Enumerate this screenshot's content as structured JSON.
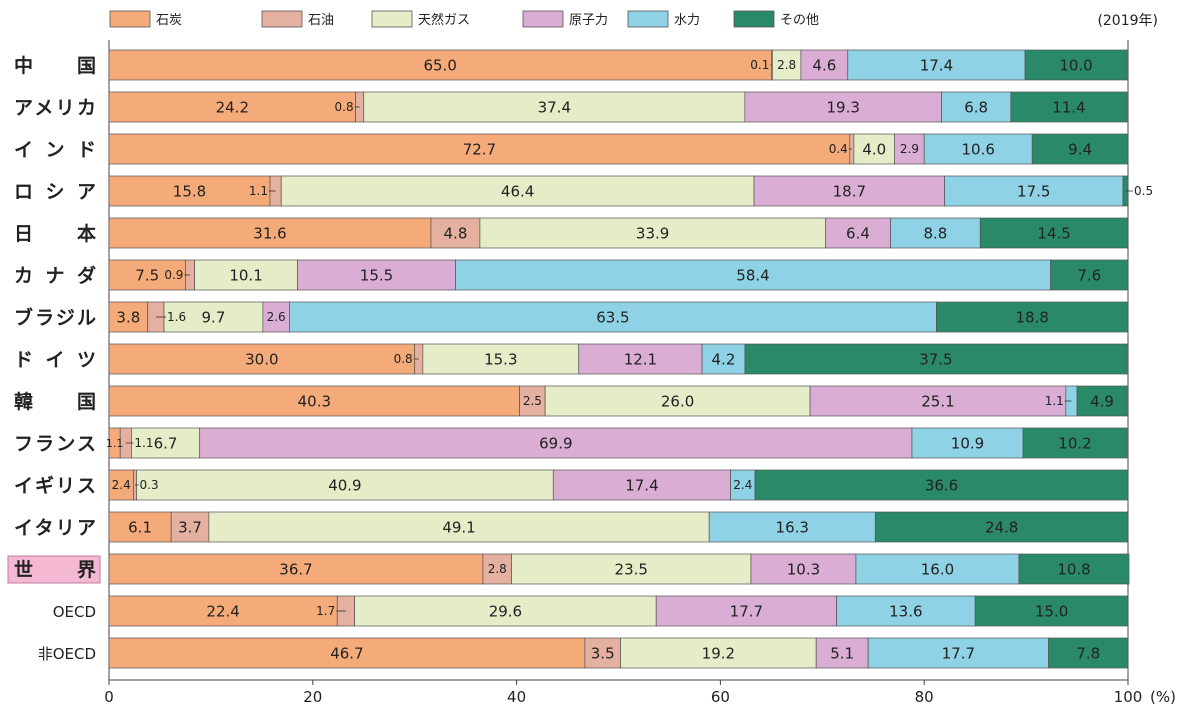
{
  "chart_data": {
    "type": "bar",
    "orientation": "horizontal",
    "stacked": true,
    "note": "(2019年)",
    "xlim": [
      0,
      100
    ],
    "xticks": [
      "0",
      "20",
      "40",
      "60",
      "80",
      "100"
    ],
    "xunit": "(%)",
    "legend_position": "top",
    "series": [
      {
        "name": "石炭",
        "color": "#f5ab79"
      },
      {
        "name": "石油",
        "color": "#e4b0a0"
      },
      {
        "name": "天然ガス",
        "color": "#e5ecc8"
      },
      {
        "name": "原子力",
        "color": "#d9add4"
      },
      {
        "name": "水力",
        "color": "#8fd2e6"
      },
      {
        "name": "その他",
        "color": "#2a8a68"
      }
    ],
    "categories": [
      {
        "label": "中国",
        "style": "country",
        "values": [
          65.0,
          0.1,
          2.8,
          4.6,
          17.4,
          10.0
        ],
        "labels": [
          "65.0",
          "0.1",
          "2.8",
          "4.6",
          "17.4",
          "10.0"
        ]
      },
      {
        "label": "アメリカ",
        "style": "country",
        "values": [
          24.2,
          0.8,
          37.4,
          19.3,
          6.8,
          11.4
        ],
        "labels": [
          "24.2",
          "0.8",
          "37.4",
          "19.3",
          "6.8",
          "11.4"
        ]
      },
      {
        "label": "インド",
        "style": "country",
        "values": [
          72.7,
          0.4,
          4.0,
          2.9,
          10.6,
          9.4
        ],
        "labels": [
          "72.7",
          "0.4",
          "4.0",
          "2.9",
          "10.6",
          "9.4"
        ]
      },
      {
        "label": "ロシア",
        "style": "country",
        "values": [
          15.8,
          1.1,
          46.4,
          18.7,
          17.5,
          0.5
        ],
        "labels": [
          "15.8",
          "1.1",
          "46.4",
          "18.7",
          "17.5",
          "0.5"
        ]
      },
      {
        "label": "日本",
        "style": "country",
        "values": [
          31.6,
          4.8,
          33.9,
          6.4,
          8.8,
          14.5
        ],
        "labels": [
          "31.6",
          "4.8",
          "33.9",
          "6.4",
          "8.8",
          "14.5"
        ]
      },
      {
        "label": "カナダ",
        "style": "country",
        "values": [
          7.5,
          0.9,
          10.1,
          15.5,
          58.4,
          7.6
        ],
        "labels": [
          "7.5",
          "0.9",
          "10.1",
          "15.5",
          "58.4",
          "7.6"
        ]
      },
      {
        "label": "ブラジル",
        "style": "country",
        "values": [
          3.8,
          1.6,
          9.7,
          2.6,
          63.5,
          18.8
        ],
        "labels": [
          "3.8",
          "1.6",
          "9.7",
          "2.6",
          "63.5",
          "18.8"
        ]
      },
      {
        "label": "ドイツ",
        "style": "country",
        "values": [
          30.0,
          0.8,
          15.3,
          12.1,
          4.2,
          37.5
        ],
        "labels": [
          "30.0",
          "0.8",
          "15.3",
          "12.1",
          "4.2",
          "37.5"
        ]
      },
      {
        "label": "韓国",
        "style": "country",
        "values": [
          40.3,
          2.5,
          26.0,
          25.1,
          1.1,
          4.9
        ],
        "labels": [
          "40.3",
          "2.5",
          "26.0",
          "25.1",
          "1.1",
          "4.9"
        ]
      },
      {
        "label": "フランス",
        "style": "country",
        "values": [
          1.1,
          1.1,
          6.7,
          69.9,
          10.9,
          10.2
        ],
        "labels": [
          "1.1",
          "1.1",
          "6.7",
          "69.9",
          "10.9",
          "10.2"
        ]
      },
      {
        "label": "イギリス",
        "style": "country",
        "values": [
          2.4,
          0.3,
          40.9,
          17.4,
          2.4,
          36.6
        ],
        "labels": [
          "2.4",
          "0.3",
          "40.9",
          "17.4",
          "2.4",
          "36.6"
        ]
      },
      {
        "label": "イタリア",
        "style": "country",
        "values": [
          6.1,
          3.7,
          49.1,
          0,
          16.3,
          24.8
        ],
        "labels": [
          "6.1",
          "3.7",
          "49.1",
          "",
          "16.3",
          "24.8"
        ]
      },
      {
        "label": "世界",
        "style": "world",
        "values": [
          36.7,
          2.8,
          23.5,
          10.3,
          16.0,
          10.8
        ],
        "labels": [
          "36.7",
          "2.8",
          "23.5",
          "10.3",
          "16.0",
          "10.8"
        ]
      },
      {
        "label": "OECD",
        "style": "group",
        "values": [
          22.4,
          1.7,
          29.6,
          17.7,
          13.6,
          15.0
        ],
        "labels": [
          "22.4",
          "1.7",
          "29.6",
          "17.7",
          "13.6",
          "15.0"
        ]
      },
      {
        "label": "非OECD",
        "style": "group",
        "values": [
          46.7,
          3.5,
          19.2,
          5.1,
          17.7,
          7.8
        ],
        "labels": [
          "46.7",
          "3.5",
          "19.2",
          "5.1",
          "17.7",
          "7.8"
        ]
      }
    ]
  }
}
